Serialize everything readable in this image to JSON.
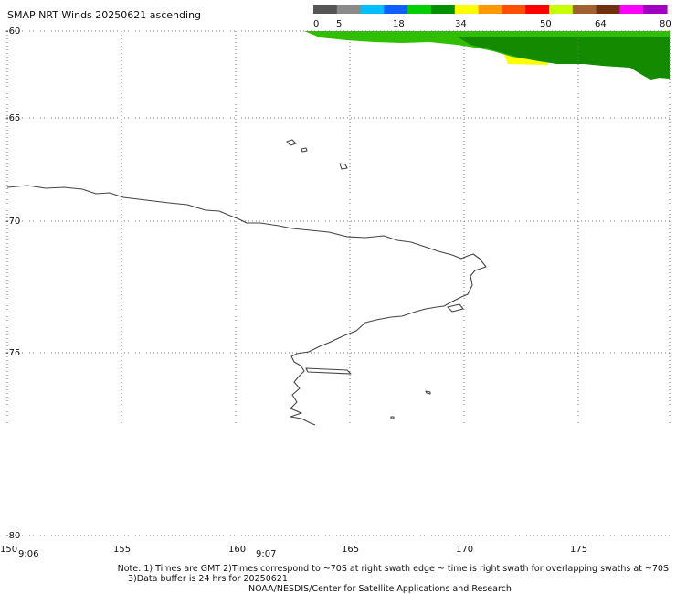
{
  "title": "SMAP NRT Winds 20250621 ascending",
  "colorbar": {
    "ticks": [
      "0",
      "5",
      "18",
      "34",
      "50",
      "64",
      "80"
    ],
    "colors": [
      "#555555",
      "#8a8a8a",
      "#00bfff",
      "#1060ff",
      "#00d000",
      "#009000",
      "#ffff00",
      "#ff9900",
      "#ff5000",
      "#ff0000",
      "#c8ff00",
      "#a06030",
      "#703010",
      "#ff00ff",
      "#a000c0"
    ]
  },
  "lat_labels": [
    "-60",
    "-65",
    "-70",
    "-75",
    "-80"
  ],
  "lon_labels": [
    "150",
    "155",
    "160",
    "165",
    "170",
    "175"
  ],
  "times": [
    "9:06",
    "9:07"
  ],
  "notes": {
    "line1": "Note: 1) Times are GMT 2)Times correspond to ~70S at right swath edge ~ time is right swath for overlapping swaths at ~70S",
    "line2": "3)Data buffer is 24 hrs for 20250621",
    "line3": "NOAA/NESDIS/Center for Satellite Applications and Research"
  },
  "swath_colors": {
    "green_light": "#33cc00",
    "green_dark": "#1a9a00",
    "yellow": "#ffff00"
  }
}
